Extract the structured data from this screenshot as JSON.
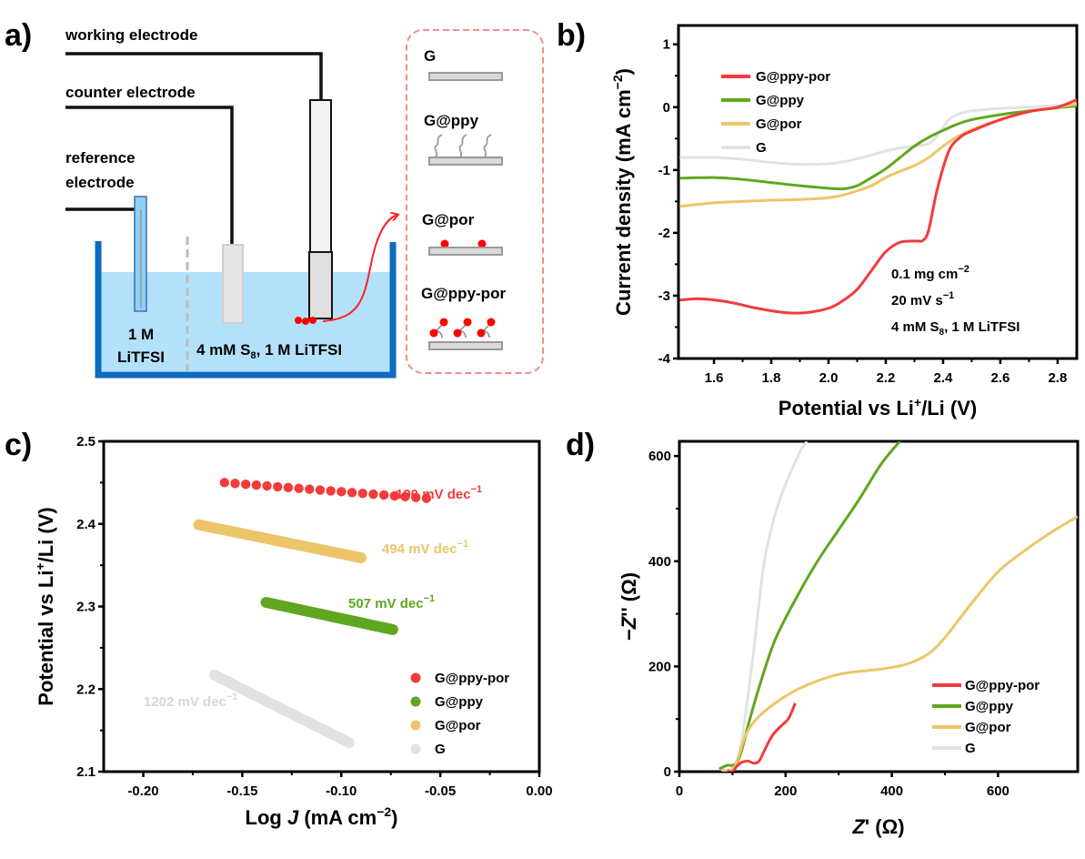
{
  "colors": {
    "G@ppy-por": "#f23b3b",
    "G@ppy": "#5fa71f",
    "G@por": "#ecc56a",
    "G": "#e2e2e2",
    "electrolyte": "#b4e1fa",
    "beaker": "#0a6bbf",
    "dashed_box": "#f48c8c"
  },
  "panel_a": {
    "label": "a)",
    "working_electrode": "working electrode",
    "counter_electrode": "counter electrode",
    "reference_electrode_line1": "reference",
    "reference_electrode_line2": "electrode",
    "left_compartment_line1": "1 M",
    "left_compartment_line2": "LiTFSI",
    "right_compartment": "4 mM S",
    "right_compartment_sub": "8",
    "right_compartment_tail": ", 1 M LiTFSI",
    "materials": [
      "G",
      "G@ppy",
      "G@por",
      "G@ppy-por"
    ]
  },
  "chart_data": [
    {
      "id": "b",
      "panel_label": "b)",
      "type": "line",
      "title": "",
      "xlabel": "Potential vs Li+/Li (V)",
      "ylabel": "Current density (mA cm−2)",
      "xlim": [
        1.476,
        2.867
      ],
      "ylim": [
        -4,
        1.3
      ],
      "xticks": [
        1.6,
        1.8,
        2.0,
        2.2,
        2.4,
        2.6,
        2.8
      ],
      "xtick_labels": [
        "1.6",
        "1.8",
        "2.0",
        "2.2",
        "2.4",
        "2.6",
        "2.8"
      ],
      "yticks": [
        -4,
        -3,
        -2,
        -1,
        0,
        1
      ],
      "ytick_labels": [
        "-4",
        "-3",
        "-2",
        "-1",
        "0",
        "1"
      ],
      "legend": [
        "G@ppy-por",
        "G@ppy",
        "G@por",
        "G"
      ],
      "legend_position": "top-left",
      "annotations": [
        "0.1 mg cm−2",
        "20 mV s−1",
        "4 mM S8, 1 M LiTFSI"
      ],
      "series": [
        {
          "name": "G@ppy-por",
          "x": [
            1.48,
            1.55,
            1.65,
            1.75,
            1.85,
            1.92,
            2.0,
            2.05,
            2.1,
            2.15,
            2.2,
            2.25,
            2.3,
            2.33,
            2.35,
            2.38,
            2.42,
            2.46,
            2.5,
            2.6,
            2.7,
            2.8,
            2.867
          ],
          "y": [
            -3.07,
            -3.05,
            -3.1,
            -3.2,
            -3.27,
            -3.27,
            -3.2,
            -3.08,
            -2.9,
            -2.6,
            -2.3,
            -2.15,
            -2.13,
            -2.12,
            -1.95,
            -1.3,
            -0.7,
            -0.48,
            -0.38,
            -0.2,
            -0.07,
            0.0,
            0.12
          ]
        },
        {
          "name": "G@ppy",
          "x": [
            1.48,
            1.6,
            1.7,
            1.8,
            1.9,
            2.0,
            2.05,
            2.1,
            2.15,
            2.2,
            2.25,
            2.3,
            2.35,
            2.4,
            2.45,
            2.5,
            2.6,
            2.7,
            2.8,
            2.867
          ],
          "y": [
            -1.13,
            -1.12,
            -1.15,
            -1.2,
            -1.25,
            -1.29,
            -1.3,
            -1.25,
            -1.12,
            -0.98,
            -0.8,
            -0.62,
            -0.48,
            -0.37,
            -0.27,
            -0.2,
            -0.12,
            -0.06,
            -0.01,
            0.02
          ]
        },
        {
          "name": "G@por",
          "x": [
            1.48,
            1.6,
            1.7,
            1.8,
            1.9,
            2.0,
            2.05,
            2.1,
            2.15,
            2.2,
            2.25,
            2.3,
            2.35,
            2.4,
            2.45,
            2.5,
            2.6,
            2.7,
            2.8,
            2.867
          ],
          "y": [
            -1.58,
            -1.52,
            -1.5,
            -1.48,
            -1.47,
            -1.44,
            -1.4,
            -1.33,
            -1.25,
            -1.12,
            -1.02,
            -0.93,
            -0.8,
            -0.62,
            -0.47,
            -0.36,
            -0.2,
            -0.07,
            0.0,
            0.05
          ]
        },
        {
          "name": "G",
          "x": [
            1.48,
            1.6,
            1.7,
            1.8,
            1.9,
            2.0,
            2.05,
            2.1,
            2.15,
            2.2,
            2.25,
            2.3,
            2.35,
            2.38,
            2.42,
            2.46,
            2.5,
            2.6,
            2.7,
            2.8,
            2.867
          ],
          "y": [
            -0.8,
            -0.8,
            -0.83,
            -0.88,
            -0.91,
            -0.9,
            -0.87,
            -0.82,
            -0.76,
            -0.7,
            -0.65,
            -0.62,
            -0.58,
            -0.45,
            -0.2,
            -0.1,
            -0.06,
            -0.02,
            0.0,
            0.03,
            0.06
          ]
        }
      ]
    },
    {
      "id": "c",
      "panel_label": "c)",
      "type": "scatter",
      "title": "",
      "xlabel": "Log J (mA cm−2)",
      "ylabel": "Potential vs Li+/Li (V)",
      "xlim": [
        -0.22,
        0.0
      ],
      "ylim": [
        2.1,
        2.5
      ],
      "xticks": [
        -0.2,
        -0.15,
        -0.1,
        -0.05,
        0.0
      ],
      "xtick_labels": [
        "-0.20",
        "-0.15",
        "-0.10",
        "-0.05",
        "0.00"
      ],
      "yticks": [
        2.1,
        2.2,
        2.3,
        2.4,
        2.5
      ],
      "ytick_labels": [
        "2.1",
        "2.2",
        "2.3",
        "2.4",
        "2.5"
      ],
      "legend": [
        "G@ppy-por",
        "G@ppy",
        "G@por",
        "G"
      ],
      "legend_position": "bottom-right",
      "series": [
        {
          "name": "G@ppy-por",
          "x_start": -0.159,
          "x_end": -0.057,
          "y_start": 2.45,
          "y_end": 2.431,
          "n_points": 20,
          "tafel_label": "190 mV dec−1"
        },
        {
          "name": "G@por",
          "x_start": -0.172,
          "x_end": -0.09,
          "y_start": 2.399,
          "y_end": 2.359,
          "n_points": 60,
          "tafel_label": "494 mV dec−1"
        },
        {
          "name": "G@ppy",
          "x_start": -0.138,
          "x_end": -0.074,
          "y_start": 2.305,
          "y_end": 2.272,
          "n_points": 60,
          "tafel_label": "507 mV dec−1"
        },
        {
          "name": "G",
          "x_start": -0.164,
          "x_end": -0.096,
          "y_start": 2.217,
          "y_end": 2.135,
          "n_points": 60,
          "tafel_label": "1202 mV dec−1"
        }
      ]
    },
    {
      "id": "d",
      "panel_label": "d)",
      "type": "line",
      "title": "",
      "xlabel": "Z' (Ω)",
      "ylabel": "−Z'' (Ω)",
      "xlim": [
        0,
        750
      ],
      "ylim": [
        0,
        628
      ],
      "xticks": [
        0,
        200,
        400,
        600
      ],
      "xtick_labels": [
        "0",
        "200",
        "400",
        "600"
      ],
      "yticks": [
        0,
        200,
        400,
        600
      ],
      "ytick_labels": [
        "0",
        "200",
        "400",
        "600"
      ],
      "legend": [
        "G@ppy-por",
        "G@ppy",
        "G@por",
        "G"
      ],
      "legend_position": "bottom-right",
      "series": [
        {
          "name": "G",
          "x": [
            75,
            90,
            100,
            108,
            115,
            122,
            130,
            140,
            150,
            160,
            175,
            190,
            210,
            228,
            240
          ],
          "y": [
            5,
            3,
            8,
            20,
            45,
            90,
            150,
            230,
            320,
            400,
            470,
            520,
            570,
            610,
            628
          ]
        },
        {
          "name": "G@ppy",
          "x": [
            75,
            90,
            100,
            110,
            120,
            130,
            150,
            180,
            220,
            260,
            300,
            340,
            380,
            415
          ],
          "y": [
            5,
            12,
            12,
            20,
            50,
            90,
            160,
            250,
            330,
            400,
            460,
            520,
            585,
            628
          ]
        },
        {
          "name": "G@por",
          "x": [
            80,
            92,
            102,
            112,
            125,
            145,
            180,
            230,
            300,
            380,
            430,
            470,
            500,
            550,
            600,
            650,
            700,
            750
          ],
          "y": [
            3,
            0,
            5,
            30,
            70,
            100,
            130,
            160,
            185,
            195,
            205,
            225,
            255,
            320,
            380,
            420,
            455,
            485
          ]
        },
        {
          "name": "G@ppy-por",
          "x": [
            90,
            100,
            108,
            118,
            130,
            140,
            150,
            160,
            170,
            180,
            195,
            205,
            212,
            218
          ],
          "y": [
            2,
            0,
            10,
            18,
            20,
            16,
            20,
            40,
            60,
            75,
            90,
            100,
            115,
            130
          ]
        }
      ]
    }
  ]
}
